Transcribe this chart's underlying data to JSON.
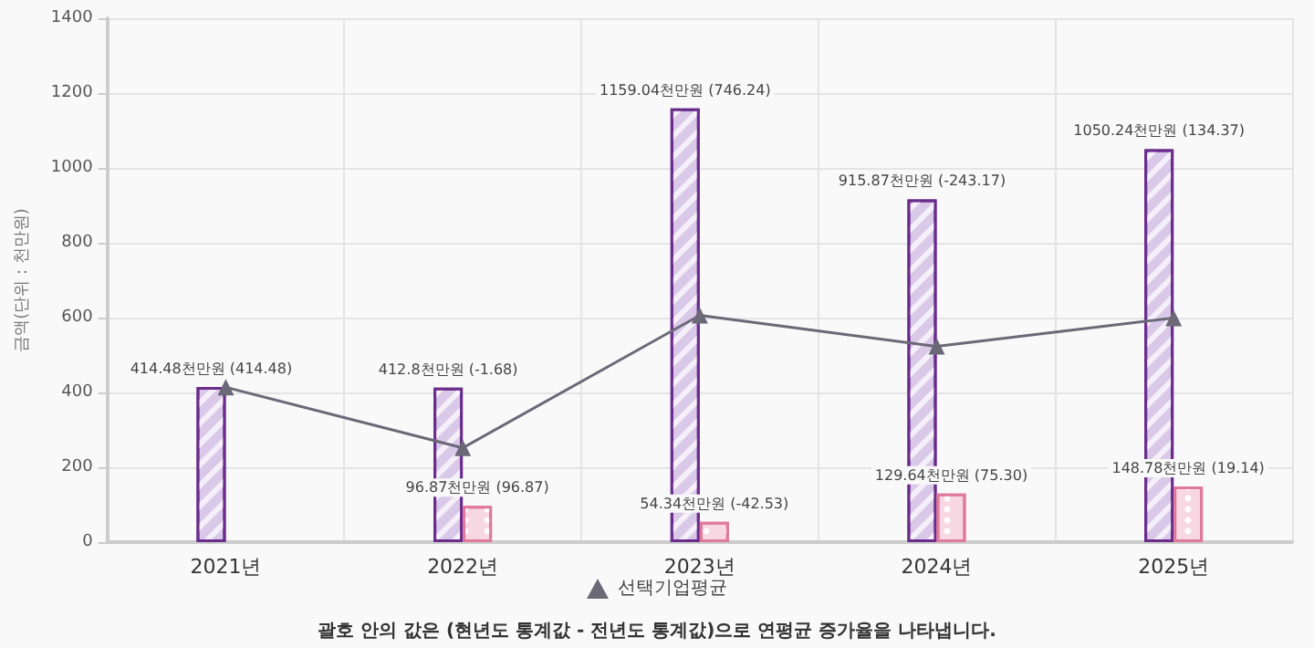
{
  "chart_data": {
    "type": "bar",
    "ylabel": "금액(단위 : 천만원)",
    "categories": [
      "2021년",
      "2022년",
      "2023년",
      "2024년",
      "2025년"
    ],
    "series": [
      {
        "color": "#d9c8e8",
        "values": [
          414.48,
          412.8,
          1159.04,
          915.87,
          1050.24
        ],
        "value_labels": [
          "414.48천만원 (414.48)",
          "412.8천만원 (-1.68)",
          "1159.04천만원 (746.24)",
          "915.87천만원 (-243.17)",
          "1050.24천만원 (134.37)"
        ]
      },
      {
        "color": "#f7d7e2",
        "values": [
          null,
          96.87,
          54.34,
          129.64,
          148.78
        ],
        "value_labels": [
          null,
          "96.87천만원 (96.87)",
          "54.34천만원 (-42.53)",
          "129.64천만원 (75.30)",
          "148.78천만원 (19.14)"
        ]
      },
      {
        "type": "line",
        "name": "선택기업평균",
        "color": "#6b6878",
        "marker": "triangle",
        "values": [
          414,
          252,
          606,
          523,
          599
        ]
      }
    ],
    "ylim": [
      0,
      1400
    ],
    "yticks": [
      0,
      200,
      400,
      600,
      800,
      1000,
      1200,
      1400
    ],
    "grid": true,
    "legend": "bottom",
    "annotations": [
      "괄호 안의 값은 (현년도 통계값 - 전년도 통계값)으로 연평균 증가율을 나타냅니다."
    ]
  }
}
